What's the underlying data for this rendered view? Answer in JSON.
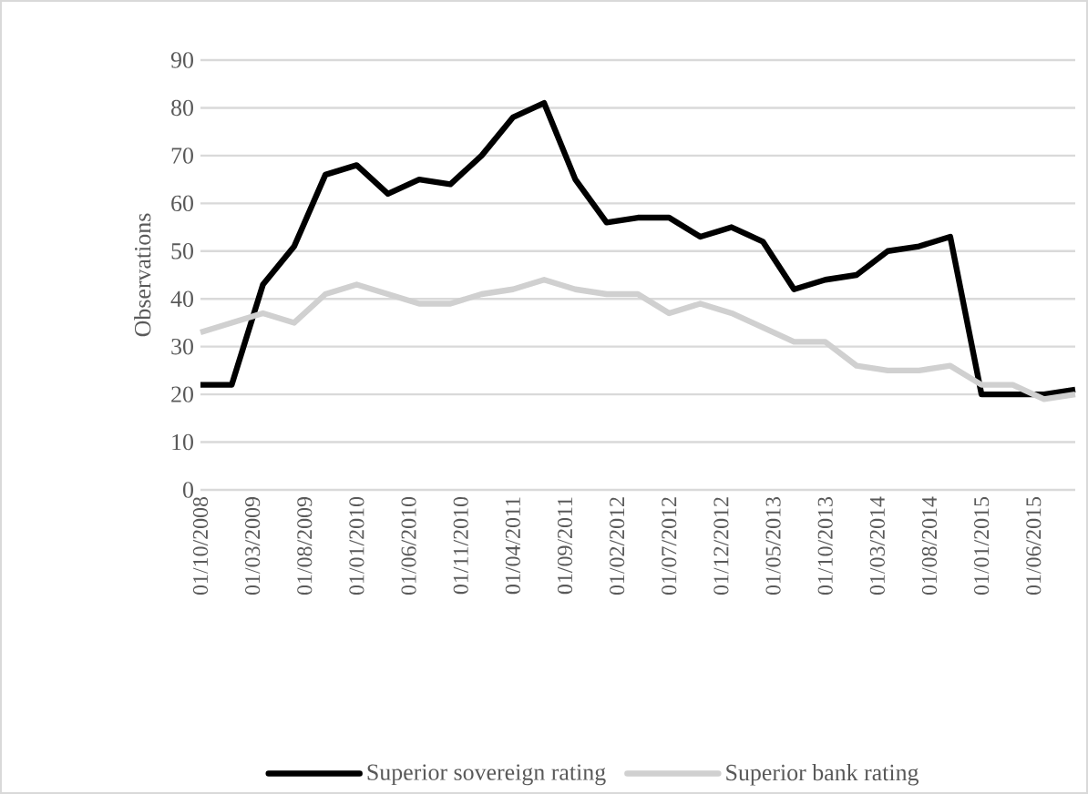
{
  "chart_data": {
    "type": "line",
    "ylabel": "Observations",
    "x": [
      "2008-10-01",
      "2009-01-01",
      "2009-04-01",
      "2009-07-01",
      "2009-10-01",
      "2010-01-01",
      "2010-04-01",
      "2010-07-01",
      "2010-10-01",
      "2011-01-01",
      "2011-04-01",
      "2011-07-01",
      "2011-10-01",
      "2012-01-01",
      "2012-04-01",
      "2012-07-01",
      "2012-10-01",
      "2013-01-01",
      "2013-04-01",
      "2013-07-01",
      "2013-10-01",
      "2014-01-01",
      "2014-04-01",
      "2014-07-01",
      "2014-10-01",
      "2015-01-01",
      "2015-04-01",
      "2015-07-01",
      "2015-10-01"
    ],
    "series": [
      {
        "name": "Superior sovereign rating",
        "color": "#000000",
        "values": [
          22,
          22,
          43,
          51,
          66,
          68,
          62,
          65,
          64,
          70,
          78,
          81,
          65,
          56,
          57,
          57,
          53,
          55,
          52,
          42,
          44,
          45,
          50,
          51,
          53,
          20,
          20,
          20,
          21
        ]
      },
      {
        "name": "Superior bank rating",
        "color": "#d0d0d0",
        "values": [
          33,
          35,
          37,
          35,
          41,
          43,
          41,
          39,
          39,
          41,
          42,
          44,
          42,
          41,
          41,
          37,
          39,
          37,
          34,
          31,
          31,
          26,
          25,
          25,
          26,
          22,
          22,
          19,
          20
        ]
      }
    ],
    "xlim": [
      "2008-10-01",
      "2015-10-01"
    ],
    "xticks": [
      {
        "value": "2008-10-01",
        "label": "01/10/2008"
      },
      {
        "value": "2009-03-01",
        "label": "01/03/2009"
      },
      {
        "value": "2009-08-01",
        "label": "01/08/2009"
      },
      {
        "value": "2010-01-01",
        "label": "01/01/2010"
      },
      {
        "value": "2010-06-01",
        "label": "01/06/2010"
      },
      {
        "value": "2010-11-01",
        "label": "01/11/2010"
      },
      {
        "value": "2011-04-01",
        "label": "01/04/2011"
      },
      {
        "value": "2011-09-01",
        "label": "01/09/2011"
      },
      {
        "value": "2012-02-01",
        "label": "01/02/2012"
      },
      {
        "value": "2012-07-01",
        "label": "01/07/2012"
      },
      {
        "value": "2012-12-01",
        "label": "01/12/2012"
      },
      {
        "value": "2013-05-01",
        "label": "01/05/2013"
      },
      {
        "value": "2013-10-01",
        "label": "01/10/2013"
      },
      {
        "value": "2014-03-01",
        "label": "01/03/2014"
      },
      {
        "value": "2014-08-01",
        "label": "01/08/2014"
      },
      {
        "value": "2015-01-01",
        "label": "01/01/2015"
      },
      {
        "value": "2015-06-01",
        "label": "01/06/2015"
      }
    ],
    "ylim": [
      0,
      90
    ],
    "yticks": [
      0,
      10,
      20,
      30,
      40,
      50,
      60,
      70,
      80,
      90
    ],
    "grid": "y",
    "legend": "bottom",
    "marker": "none",
    "line_style": "solid"
  }
}
